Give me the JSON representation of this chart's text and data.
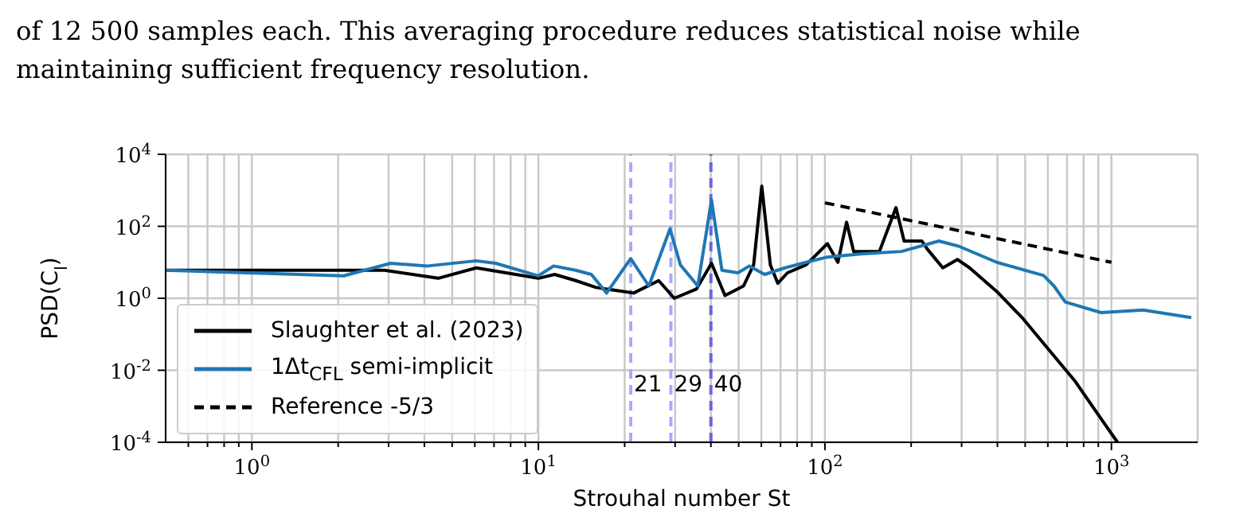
{
  "chart_data": {
    "type": "line",
    "annotations": [
      "of 12 500 samples each. This averaging procedure reduces statistical noise while maintaining sufficient frequency resolution."
    ],
    "xlabel": "Strouhal number St",
    "ylabel": "PSD(C$_{l}$)",
    "log": "xy",
    "grid": true,
    "legend": "bottom left",
    "xlim": [
      0.5,
      2000
    ],
    "ylim": [
      0.0001,
      10000
    ],
    "xticks": [
      {
        "value": 0.6,
        "label": null
      },
      {
        "value": 0.7,
        "label": null
      },
      {
        "value": 0.8,
        "label": null
      },
      {
        "value": 0.9,
        "label": null
      },
      {
        "value": 1,
        "label": "10$^{0}$"
      },
      {
        "value": 2,
        "label": null
      },
      {
        "value": 3,
        "label": null
      },
      {
        "value": 4,
        "label": null
      },
      {
        "value": 5,
        "label": null
      },
      {
        "value": 6,
        "label": null
      },
      {
        "value": 7,
        "label": null
      },
      {
        "value": 8,
        "label": null
      },
      {
        "value": 9,
        "label": null
      },
      {
        "value": 10,
        "label": "10$^{1}$"
      },
      {
        "value": 20,
        "label": null
      },
      {
        "value": 30,
        "label": null
      },
      {
        "value": 40,
        "label": null
      },
      {
        "value": 50,
        "label": null
      },
      {
        "value": 60,
        "label": null
      },
      {
        "value": 70,
        "label": null
      },
      {
        "value": 80,
        "label": null
      },
      {
        "value": 90,
        "label": null
      },
      {
        "value": 100,
        "label": "10$^{2}$"
      },
      {
        "value": 200,
        "label": null
      },
      {
        "value": 300,
        "label": null
      },
      {
        "value": 400,
        "label": null
      },
      {
        "value": 500,
        "label": null
      },
      {
        "value": 600,
        "label": null
      },
      {
        "value": 700,
        "label": null
      },
      {
        "value": 800,
        "label": null
      },
      {
        "value": 900,
        "label": null
      },
      {
        "value": 1000,
        "label": "10$^{3}$"
      }
    ],
    "yticks": [
      {
        "value": 0.0001,
        "label": "10$^{-4}$"
      },
      {
        "value": 0.01,
        "label": "10$^{-2}$"
      },
      {
        "value": 1,
        "label": "10$^{0}$"
      },
      {
        "value": 100,
        "label": "10$^{2}$"
      },
      {
        "value": 10000,
        "label": "10$^{4}$"
      }
    ],
    "ref_lines": [
      {
        "axis": "x",
        "value": 21,
        "label": "21",
        "color": "#a8a8ff",
        "line_style": "dashed"
      },
      {
        "axis": "x",
        "value": 29,
        "label": "29",
        "color": "#a8a8ff",
        "line_style": "dashed"
      },
      {
        "axis": "x",
        "value": 40,
        "label": "40",
        "color": "#6666dd",
        "line_style": "dashed"
      }
    ],
    "series": [
      {
        "name": "Slaughter et al. (2023)",
        "color": "#000000",
        "x": [
          0.5,
          2.9,
          4.47,
          6.07,
          10,
          11.4,
          13.5,
          15.9,
          21.5,
          26.3,
          29.8,
          35.6,
          40.2,
          44.8,
          52,
          56.4,
          60.2,
          64.5,
          68.5,
          74,
          86,
          102,
          111,
          119,
          126,
          155,
          177,
          189,
          218,
          228,
          258,
          290,
          320,
          398,
          488,
          605,
          748,
          920,
          1050
        ],
        "values": [
          6,
          6,
          3.6,
          7,
          3.6,
          4.6,
          3.1,
          2,
          1.4,
          3.1,
          1,
          1.8,
          9.4,
          1.2,
          2.2,
          8.5,
          1300,
          8.5,
          2.6,
          5.1,
          8.5,
          33,
          10,
          130,
          20,
          20,
          330,
          39,
          39,
          23,
          7,
          12,
          7,
          1.55,
          0.29,
          0.037,
          0.0049,
          0.00045,
          0.0001
        ]
      },
      {
        "name": "1Δt$_{CFL}$ semi-implicit",
        "color": "#1f77b4",
        "x": [
          0.5,
          2.09,
          3.05,
          4.1,
          6.07,
          7.1,
          10,
          11.3,
          13.5,
          15.3,
          17.3,
          21,
          24.3,
          28.8,
          31.3,
          36,
          40.2,
          43.7,
          49.7,
          54.5,
          61.6,
          72.5,
          86,
          102,
          133,
          185,
          250,
          293,
          398,
          580,
          630,
          690,
          920,
          1290,
          1900
        ],
        "values": [
          6,
          4.2,
          9.4,
          7.9,
          11,
          9.4,
          4.2,
          7.9,
          6,
          4.6,
          1.4,
          12.7,
          2.2,
          85,
          8.5,
          2.2,
          540,
          6,
          5.1,
          7.9,
          4.6,
          7,
          10,
          14,
          17,
          20,
          39,
          28,
          10,
          4.3,
          2.2,
          0.79,
          0.4,
          0.47,
          0.29
        ]
      },
      {
        "name": "Reference -5/3",
        "color": "#000000",
        "line_style": "dashed",
        "x": [
          100,
          1000
        ],
        "values": [
          450,
          10
        ]
      }
    ]
  }
}
